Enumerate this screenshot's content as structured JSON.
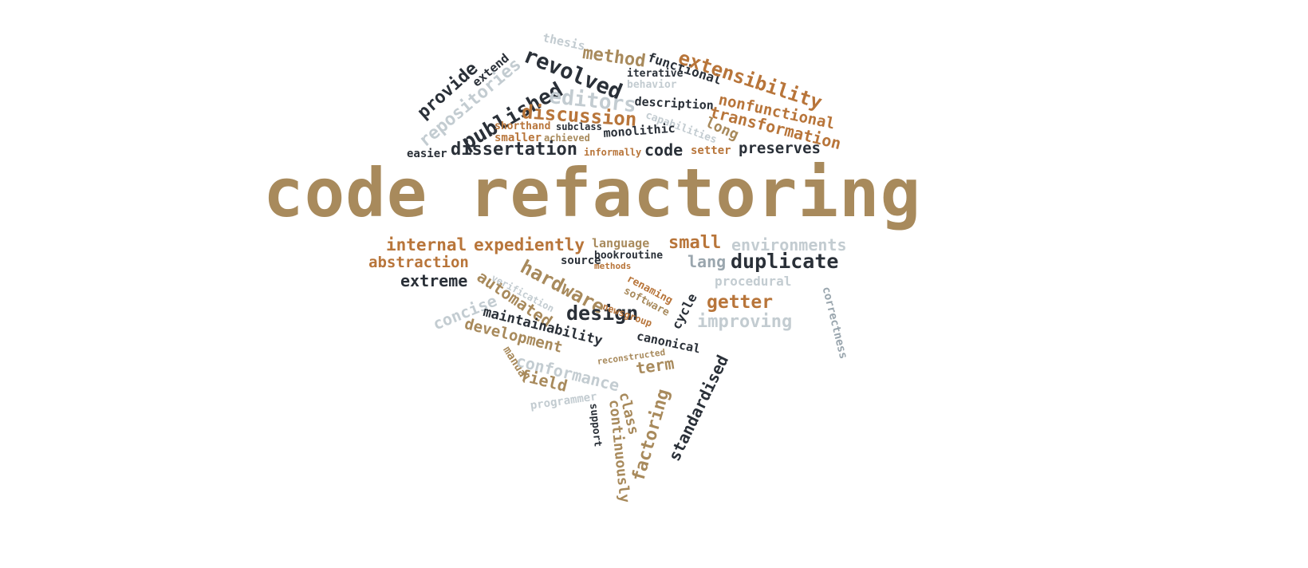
{
  "title": "code refactoring",
  "words": [
    "thesis",
    "method",
    "revolved",
    "provide",
    "extend",
    "repositories",
    "published",
    "functional",
    "iterative",
    "behavior",
    "extensibility",
    "editors",
    "description",
    "nonfunctional",
    "transformation",
    "long",
    "capabilities",
    "discussion",
    "shorthand",
    "subclass",
    "smaller",
    "achieved",
    "monolithic",
    "easier",
    "dissertation",
    "informally",
    "code",
    "setter",
    "preserves",
    "internal",
    "expediently",
    "language",
    "small",
    "environments",
    "abstraction",
    "bookroutine",
    "source",
    "methods",
    "lang",
    "duplicate",
    "extreme",
    "hardware",
    "automated",
    "verification",
    "renaming",
    "software",
    "procedural",
    "concise",
    "getter",
    "maintainability",
    "design",
    "newsgroup",
    "cycle",
    "correctness",
    "improving",
    "development",
    "canonical",
    "reconstructed",
    "term",
    "manual",
    "conformance",
    "field",
    "standardised",
    "programmer",
    "class",
    "support",
    "factoring",
    "continuously"
  ]
}
